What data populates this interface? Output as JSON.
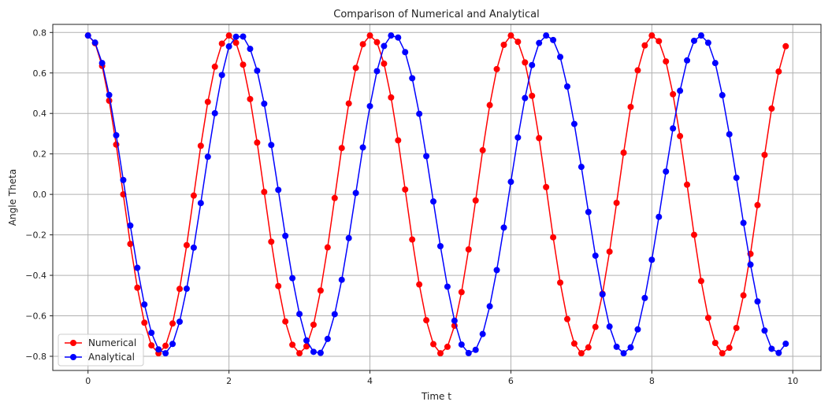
{
  "chart_data": {
    "type": "line",
    "title": "Comparison of Numerical and Analytical",
    "xlabel": "Time t",
    "ylabel": "Angle Theta",
    "xlim": [
      -0.5,
      10.4
    ],
    "ylim": [
      -0.87,
      0.84
    ],
    "xticks": [
      0,
      2,
      4,
      6,
      8,
      10
    ],
    "xtick_labels": [
      "0",
      "2",
      "4",
      "6",
      "8",
      "10"
    ],
    "yticks": [
      -0.8,
      -0.6,
      -0.4,
      -0.2,
      0.0,
      0.2,
      0.4,
      0.6,
      0.8
    ],
    "ytick_labels": [
      "−0.8",
      "−0.6",
      "−0.4",
      "−0.2",
      "0.0",
      "0.2",
      "0.4",
      "0.6",
      "0.8"
    ],
    "grid": true,
    "legend_position": "lower-left",
    "x": [
      0.0,
      0.1,
      0.2,
      0.3,
      0.4,
      0.5,
      0.6,
      0.7,
      0.8,
      0.9,
      1.0,
      1.1,
      1.2,
      1.3,
      1.4,
      1.5,
      1.6,
      1.7,
      1.8,
      1.9,
      2.0,
      2.1,
      2.2,
      2.3,
      2.4,
      2.5,
      2.6,
      2.7,
      2.8,
      2.9,
      3.0,
      3.1,
      3.2,
      3.3,
      3.4,
      3.5,
      3.6,
      3.7,
      3.8,
      3.9,
      4.0,
      4.1,
      4.2,
      4.3,
      4.4,
      4.5,
      4.6,
      4.7,
      4.8,
      4.9,
      5.0,
      5.1,
      5.2,
      5.3,
      5.4,
      5.5,
      5.6,
      5.7,
      5.8,
      5.9,
      6.0,
      6.1,
      6.2,
      6.3,
      6.4,
      6.5,
      6.6,
      6.7,
      6.8,
      6.9,
      7.0,
      7.1,
      7.2,
      7.3,
      7.4,
      7.5,
      7.6,
      7.7,
      7.8,
      7.9,
      8.0,
      8.1,
      8.2,
      8.3,
      8.4,
      8.5,
      8.6,
      8.7,
      8.8,
      8.9,
      9.0,
      9.1,
      9.2,
      9.3,
      9.4,
      9.5,
      9.6,
      9.7,
      9.8,
      9.9
    ],
    "series": [
      {
        "name": "Numerical",
        "color": "#ff0000",
        "values": [
          0.785,
          0.747,
          0.635,
          0.463,
          0.246,
          0.0,
          -0.245,
          -0.461,
          -0.634,
          -0.746,
          -0.785,
          -0.748,
          -0.638,
          -0.467,
          -0.251,
          -0.006,
          0.24,
          0.457,
          0.631,
          0.745,
          0.785,
          0.749,
          0.641,
          0.471,
          0.256,
          0.012,
          -0.234,
          -0.453,
          -0.628,
          -0.743,
          -0.785,
          -0.751,
          -0.644,
          -0.475,
          -0.262,
          -0.018,
          0.229,
          0.449,
          0.625,
          0.742,
          0.785,
          0.752,
          0.646,
          0.479,
          0.267,
          0.024,
          -0.223,
          -0.445,
          -0.622,
          -0.74,
          -0.785,
          -0.753,
          -0.649,
          -0.483,
          -0.272,
          -0.03,
          0.218,
          0.441,
          0.619,
          0.739,
          0.785,
          0.754,
          0.652,
          0.487,
          0.278,
          0.036,
          -0.212,
          -0.436,
          -0.616,
          -0.737,
          -0.785,
          -0.756,
          -0.655,
          -0.491,
          -0.283,
          -0.042,
          0.206,
          0.432,
          0.613,
          0.736,
          0.785,
          0.757,
          0.657,
          0.495,
          0.288,
          0.048,
          -0.2,
          -0.428,
          -0.61,
          -0.734,
          -0.785,
          -0.758,
          -0.66,
          -0.499,
          -0.294,
          -0.053,
          0.195,
          0.424,
          0.607,
          0.732
        ]
      },
      {
        "name": "Analytical",
        "color": "#0000ff",
        "values": [
          0.785,
          0.75,
          0.649,
          0.491,
          0.292,
          0.071,
          -0.154,
          -0.363,
          -0.544,
          -0.684,
          -0.766,
          -0.785,
          -0.739,
          -0.629,
          -0.466,
          -0.263,
          -0.043,
          0.186,
          0.401,
          0.59,
          0.731,
          0.779,
          0.78,
          0.719,
          0.611,
          0.448,
          0.244,
          0.022,
          -0.205,
          -0.414,
          -0.591,
          -0.722,
          -0.778,
          -0.783,
          -0.714,
          -0.592,
          -0.422,
          -0.216,
          0.007,
          0.232,
          0.436,
          0.609,
          0.733,
          0.785,
          0.775,
          0.703,
          0.574,
          0.398,
          0.189,
          -0.035,
          -0.256,
          -0.456,
          -0.624,
          -0.742,
          -0.784,
          -0.768,
          -0.69,
          -0.553,
          -0.374,
          -0.164,
          0.062,
          0.281,
          0.476,
          0.639,
          0.748,
          0.785,
          0.763,
          0.679,
          0.533,
          0.348,
          0.136,
          -0.087,
          -0.303,
          -0.494,
          -0.653,
          -0.753,
          -0.785,
          -0.756,
          -0.667,
          -0.512,
          -0.323,
          -0.111,
          0.113,
          0.326,
          0.512,
          0.662,
          0.759,
          0.785,
          0.749,
          0.649,
          0.49,
          0.297,
          0.082,
          -0.141,
          -0.347,
          -0.529,
          -0.673,
          -0.763,
          -0.783,
          -0.738
        ]
      }
    ]
  }
}
